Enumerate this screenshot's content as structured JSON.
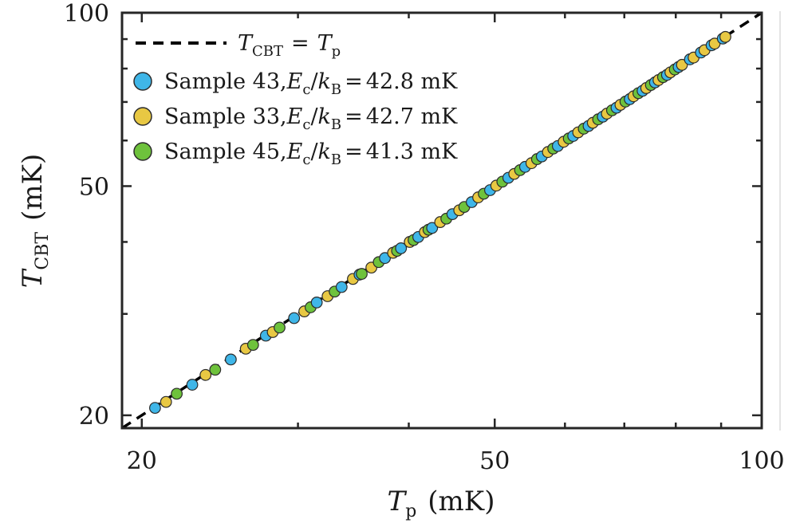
{
  "chart_data": {
    "type": "scatter",
    "xscale": "log",
    "yscale": "log",
    "xlim": [
      19,
      100
    ],
    "ylim": [
      19,
      100
    ],
    "xticks": [
      20,
      50,
      100
    ],
    "yticks": [
      20,
      50,
      100
    ],
    "xtick_labels": [
      "20",
      "50",
      "100"
    ],
    "ytick_labels": [
      "20",
      "50",
      "100"
    ],
    "xlabel": {
      "symbol": "T",
      "subscript": "p",
      "unit": "(mK)"
    },
    "ylabel": {
      "symbol": "T",
      "subscript": "CBT",
      "unit": "(mK)"
    },
    "reference_line": {
      "legend": {
        "lhs": "T",
        "lhs_sub": "CBT",
        "eq": "=",
        "rhs": "T",
        "rhs_sub": "p"
      },
      "style": "dashed",
      "color": "#000000"
    },
    "series": [
      {
        "name": "Sample 43",
        "legend": {
          "prefix": "Sample 43,",
          "var": "E",
          "var_sub": "c",
          "slash": "/",
          "var2": "k",
          "var2_sub": "B",
          "eq": "=",
          "value": "42.8 mK"
        },
        "color": "#3fb6e8",
        "x": [
          20.7,
          22.8,
          25.2,
          27.6,
          29.7,
          31.5,
          33.6,
          35.2,
          37.6,
          39.2,
          41.0,
          42.5,
          44.8,
          47.1,
          49.4,
          51.8,
          54.1,
          56.5,
          58.9,
          61.3,
          63.8,
          66.2,
          68.6,
          71.0,
          73.4,
          75.8,
          78.2,
          80.6,
          83.0,
          85.4,
          87.8,
          90.4
        ],
        "y": [
          20.6,
          22.6,
          25.0,
          27.5,
          29.5,
          31.4,
          33.4,
          35.1,
          37.5,
          39.0,
          40.8,
          42.3,
          44.7,
          46.9,
          49.2,
          51.7,
          54.0,
          56.3,
          58.7,
          61.1,
          63.6,
          66.0,
          68.4,
          70.8,
          73.2,
          75.7,
          78.0,
          80.5,
          83.0,
          85.3,
          87.8,
          90.2
        ]
      },
      {
        "name": "Sample 33",
        "legend": {
          "prefix": "Sample 33,",
          "var": "E",
          "var_sub": "c",
          "slash": "/",
          "var2": "k",
          "var2_sub": "B",
          "eq": "=",
          "value": "42.7 mK"
        },
        "color": "#e8c843",
        "x": [
          21.3,
          23.6,
          26.2,
          28.1,
          30.5,
          32.4,
          34.6,
          36.3,
          38.4,
          40.1,
          41.7,
          43.4,
          45.6,
          47.9,
          50.2,
          52.6,
          55.0,
          57.4,
          59.8,
          62.1,
          64.5,
          66.9,
          69.3,
          71.7,
          74.1,
          76.5,
          78.9,
          81.3,
          83.8,
          86.2,
          88.5,
          91.0
        ],
        "y": [
          21.1,
          23.5,
          26.1,
          27.9,
          30.3,
          32.2,
          34.5,
          36.1,
          38.3,
          40.0,
          41.6,
          43.3,
          45.4,
          47.8,
          50.1,
          52.5,
          54.8,
          57.3,
          59.7,
          62.0,
          64.4,
          66.8,
          69.2,
          71.6,
          74.0,
          76.4,
          78.8,
          81.2,
          83.6,
          86.1,
          88.4,
          90.8
        ]
      },
      {
        "name": "Sample 45",
        "legend": {
          "prefix": "Sample 45,",
          "var": "E",
          "var_sub": "c",
          "slash": "/",
          "var2": "k",
          "var2_sub": "B",
          "eq": "=",
          "value": "41.3 mK"
        },
        "color": "#6ec23c",
        "x": [
          21.9,
          24.2,
          26.7,
          28.6,
          31.0,
          33.0,
          35.4,
          37.0,
          38.8,
          40.5,
          42.1,
          44.1,
          46.2,
          48.6,
          51.0,
          53.4,
          55.8,
          58.2,
          60.6,
          63.0,
          65.4,
          67.8,
          70.2,
          72.6,
          75.0,
          77.4,
          79.8
        ],
        "y": [
          21.8,
          24.0,
          26.5,
          28.4,
          30.8,
          32.8,
          35.2,
          36.9,
          38.6,
          40.3,
          42.0,
          43.9,
          46.0,
          48.5,
          50.9,
          53.3,
          55.7,
          58.1,
          60.5,
          62.9,
          65.3,
          67.7,
          70.1,
          72.5,
          74.9,
          77.3,
          79.7
        ]
      }
    ]
  }
}
